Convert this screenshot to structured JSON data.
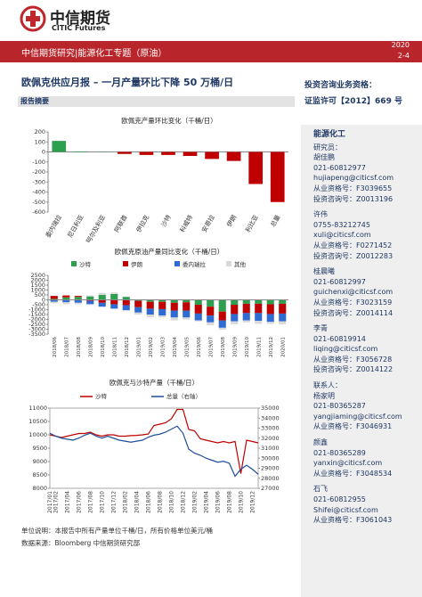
{
  "header": {
    "logo_cn": "中信期货",
    "logo_en": "CITIC Futures",
    "band": "中信期货研究|能源化工专题（原油）",
    "year": "2020",
    "date": "2-4"
  },
  "title": "欧佩克供应月报 – 一月产量环比下降 50 万桶/日",
  "qualification": {
    "label": "投资咨询业务资格：",
    "license": "证监许可【2012】669 号"
  },
  "summary_label": "报告摘要",
  "chart_data": [
    {
      "type": "bar",
      "title": "欧佩克产量环比变化（千桶/日）",
      "categories": [
        "委内瑞拉",
        "尼日利亚",
        "阿尔及利亚",
        "阿联酋",
        "伊拉克",
        "沙特",
        "科威特",
        "安哥拉",
        "伊朗",
        "利比亚",
        "总量"
      ],
      "values": [
        110,
        5,
        2,
        -20,
        -30,
        -30,
        -40,
        -70,
        -90,
        -320,
        -500
      ],
      "colors": [
        "#2e9e4f",
        "#2e9e4f",
        "#2e9e4f",
        "#c00000",
        "#c00000",
        "#c00000",
        "#c00000",
        "#c00000",
        "#c00000",
        "#c00000",
        "#c00000"
      ],
      "ylim": [
        -600,
        200
      ],
      "yticks": [
        -600,
        -500,
        -400,
        -300,
        -200,
        -100,
        0,
        100,
        200
      ]
    },
    {
      "type": "stacked-bar",
      "title": "欧佩克原油产量同比变化（千桶/日）",
      "categories": [
        "2018/06",
        "2018/07",
        "2018/08",
        "2018/09",
        "2018/10",
        "2018/11",
        "2018/12",
        "2019/01",
        "2019/02",
        "2019/03",
        "2019/04",
        "2019/05",
        "2019/06",
        "2019/07",
        "2019/08",
        "2019/09",
        "2019/10",
        "2019/11",
        "2019/12",
        "2020/01"
      ],
      "series": [
        {
          "name": "沙特",
          "color": "#2e9e4f",
          "values": [
            100,
            250,
            300,
            350,
            500,
            600,
            300,
            -100,
            -200,
            -200,
            -300,
            -250,
            -500,
            -700,
            -1200,
            -500,
            -400,
            -400,
            -450,
            -400
          ]
        },
        {
          "name": "伊朗",
          "color": "#c00000",
          "values": [
            300,
            200,
            100,
            -100,
            -300,
            -450,
            -550,
            -650,
            -700,
            -750,
            -800,
            -850,
            -900,
            -900,
            -900,
            -950,
            -950,
            -950,
            -1000,
            -1000
          ]
        },
        {
          "name": "委内瑞拉",
          "color": "#2f6bd1",
          "values": [
            -200,
            -250,
            -300,
            -350,
            -400,
            -450,
            -500,
            -550,
            -600,
            -650,
            -700,
            -700,
            -700,
            -700,
            -750,
            -750,
            -750,
            -800,
            -800,
            -800
          ]
        },
        {
          "name": "其他",
          "color": "#d9d9d9",
          "values": [
            -150,
            -200,
            -150,
            100,
            200,
            150,
            -100,
            -200,
            -300,
            -200,
            -300,
            -200,
            -100,
            -300,
            -200,
            -300,
            -200,
            -300,
            -200,
            -300
          ]
        }
      ],
      "ylim": [
        -3500,
        2500
      ],
      "yticks": [
        -3500,
        -3000,
        -2500,
        -2000,
        -1500,
        -1000,
        -500,
        0,
        500,
        1000,
        1500,
        2000,
        2500
      ]
    },
    {
      "type": "line",
      "title": "欧佩克与沙特产量（千桶/日）",
      "x": [
        "2017/01",
        "2017/02",
        null,
        "2017/04",
        null,
        "2017/06",
        null,
        "2017/08",
        null,
        "2017/10",
        null,
        "2017/12",
        null,
        "2018/02",
        null,
        "2018/04",
        null,
        "2018/06",
        null,
        "2018/08",
        null,
        "2018/10",
        null,
        "2018/12",
        null,
        "2019/02",
        null,
        "2019/04",
        null,
        "2019/06",
        null,
        "2019/08",
        null,
        "2019/10",
        null,
        "2019/12",
        null
      ],
      "series": [
        {
          "name": "沙特",
          "color": "#c00000",
          "values": [
            10000,
            9950,
            9900,
            9950,
            10000,
            10050,
            10050,
            10100,
            10000,
            9950,
            10000,
            10000,
            9950,
            9950,
            9970,
            9980,
            10000,
            10030,
            10350,
            10400,
            10450,
            10600,
            10950,
            10950,
            10200,
            10150,
            9850,
            9800,
            9750,
            9700,
            9750,
            9700,
            9750,
            8550,
            9800,
            9750,
            9700
          ]
        },
        {
          "name": "总量（右轴）",
          "color": "#1f4e9a",
          "axis": "y2",
          "values": [
            32500,
            32200,
            32000,
            31900,
            31800,
            32000,
            32300,
            32500,
            32200,
            32000,
            32200,
            32000,
            31800,
            31700,
            31600,
            31700,
            31800,
            32100,
            32300,
            32400,
            32600,
            32900,
            33200,
            32500,
            30900,
            30500,
            30300,
            30000,
            29800,
            29600,
            29700,
            29500,
            28200,
            28900,
            29300,
            28900,
            28400
          ]
        }
      ],
      "ylim": [
        8000,
        11000
      ],
      "yticks": [
        8000,
        8500,
        9000,
        9500,
        10000,
        10500,
        11000
      ],
      "y2lim": [
        27000,
        35000
      ],
      "y2ticks": [
        27000,
        28000,
        29000,
        30000,
        31000,
        32000,
        33000,
        34000,
        35000
      ]
    }
  ],
  "notes": [
    "单位说明：本报告中所有产量单位千桶/日，所有价格单位美元/桶",
    "数据来源：Bloomberg 中信期货研究部"
  ],
  "sidebar": {
    "heading": "能源化工",
    "groups": [
      [
        "研究员：",
        "胡佳鹏",
        "021-60812977",
        "hujiapeng@citicsf.com",
        "从业资格号：F3039655",
        "投资咨询号：Z0013196"
      ],
      [
        "许伟",
        "0755-83212745",
        "xuli@citicsf.com",
        "从业资格号：F0271452",
        "投资咨询号：Z0012283"
      ],
      [
        "桂晨曦",
        "021-60812997",
        "guichenxi@citicsf.com",
        "从业资格号：F3023159",
        "投资咨询号：Z0014114"
      ],
      [
        "李青",
        "021-60819914",
        "liqing@citicsf.com",
        "从业资格号：F3056728",
        "投资咨询号：Z0014122"
      ],
      [
        "联系人：",
        "杨家明",
        "021-80365287",
        "yangjiaming@citicsf.com",
        "从业资格号：F3046931"
      ],
      [
        "颜鑫",
        "021-80365289",
        "yanxin@citicsf.com",
        "从业资格号：F3048534"
      ],
      [
        "石飞",
        "021-60812955",
        "Shifei@citicsf.com",
        "从业资格号：F3061043"
      ]
    ]
  }
}
